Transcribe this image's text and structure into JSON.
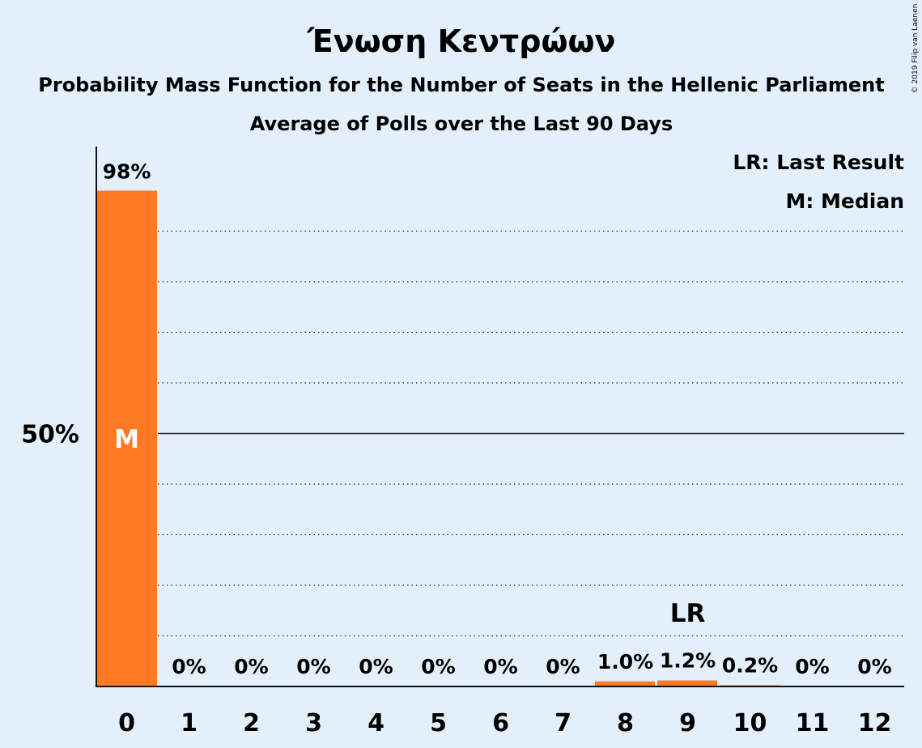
{
  "chart_data": {
    "type": "bar",
    "title": "Ένωση Κεντρώων",
    "subtitle_lines": [
      "Probability Mass Function for the Number of Seats in the Hellenic Parliament",
      "Average of Polls over the Last 90 Days"
    ],
    "categories": [
      "0",
      "1",
      "2",
      "3",
      "4",
      "5",
      "6",
      "7",
      "8",
      "9",
      "10",
      "11",
      "12"
    ],
    "values": [
      98,
      0,
      0,
      0,
      0,
      0,
      0,
      0,
      1.0,
      1.2,
      0.2,
      0,
      0
    ],
    "value_labels": [
      "98%",
      "0%",
      "0%",
      "0%",
      "0%",
      "0%",
      "0%",
      "0%",
      "1.0%",
      "1.2%",
      "0.2%",
      "0%",
      "0%"
    ],
    "ylim": [
      0,
      100
    ],
    "y_tick_values": [
      50
    ],
    "y_tick_labels": [
      "50%"
    ],
    "grid": true,
    "grid_step": 10,
    "bar_color": "#ff7a22",
    "median_index": 0,
    "median_label": "M",
    "last_result_index": 9,
    "last_result_label": "LR",
    "legend": {
      "position": "top-right",
      "entries": [
        "LR: Last Result",
        "M: Median"
      ]
    },
    "copyright": "© 2019 Filip van Laenen"
  }
}
